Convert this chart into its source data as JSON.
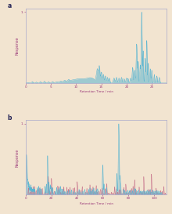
{
  "background_color": "#f2e4d0",
  "panel_bg": "#f2e4d0",
  "line_color_a": "#5ab5d0",
  "line_color_b_blue": "#5ab5d0",
  "line_color_b_pink": "#c06080",
  "axis_label_color": "#9b3a7a",
  "tick_color": "#9b3a7a",
  "spine_color": "#aaaacc",
  "panel_a_label": "a",
  "panel_b_label": "b",
  "panel_a_ylabel": "Response",
  "panel_b_ylabel": "Response",
  "panel_a_xlabel": "Retention Time / min",
  "panel_b_xlabel": "Retention Time / min",
  "panel_a_xlim": [
    0,
    28
  ],
  "panel_b_xlim": [
    0,
    110
  ],
  "panel_a_ylim": [
    0,
    1.05
  ],
  "panel_b_ylim": [
    0,
    1.05
  ],
  "font_size_label": 3.5,
  "font_size_tick": 3.0,
  "font_size_panel": 5.5,
  "fill_alpha_a": 0.55,
  "fill_alpha_b_blue": 0.45,
  "fill_alpha_b_pink": 0.35,
  "line_width": 0.35
}
